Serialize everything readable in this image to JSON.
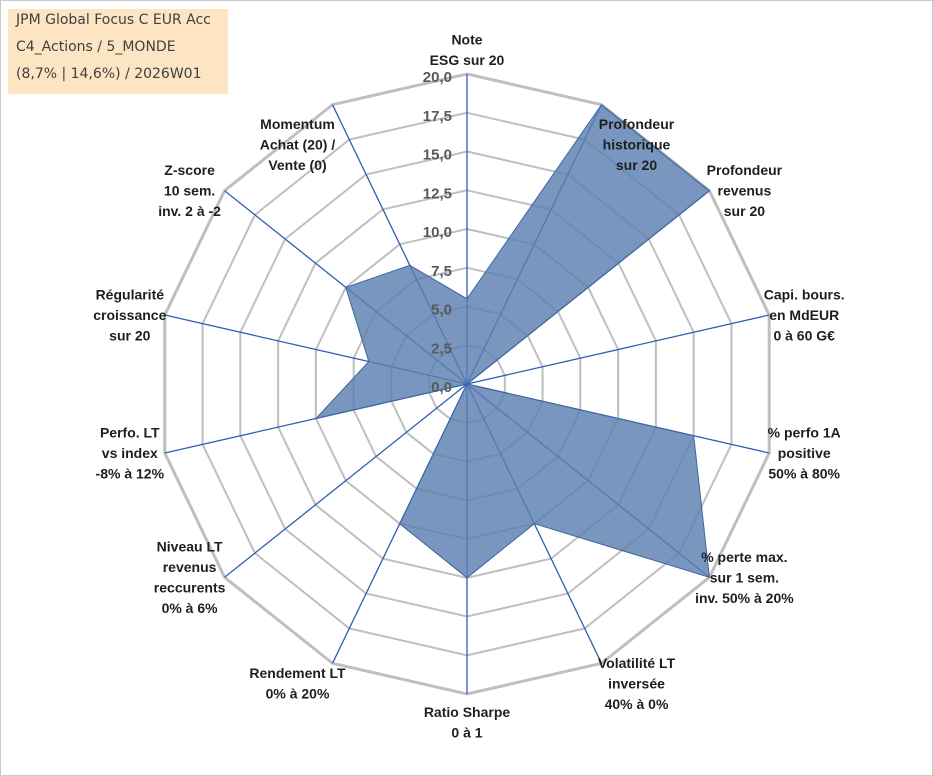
{
  "title_lines": [
    "JPM Global Focus C EUR Acc",
    "C4_Actions / 5_MONDE",
    "(8,7% | 14,6%) / 2026W01"
  ],
  "colors": {
    "fill": "#5b7fb1",
    "axis_spoke": "#2f5fb0",
    "grid": "#bfbfbf",
    "title_bg": "#fde5c4"
  },
  "chart_data": {
    "type": "radar",
    "rlim": [
      0,
      20
    ],
    "r_ticks": [
      "0,0",
      "2,5",
      "5,0",
      "7,5",
      "10,0",
      "12,5",
      "15,0",
      "17,5",
      "20,0"
    ],
    "grid": true,
    "legend": "none",
    "axes": [
      {
        "lines": [
          "Note",
          "ESG sur 20"
        ],
        "value": 5.5
      },
      {
        "lines": [
          "Profondeur",
          "historique",
          "sur 20"
        ],
        "value": 20
      },
      {
        "lines": [
          "Profondeur",
          "revenus",
          "sur 20"
        ],
        "value": 20
      },
      {
        "lines": [
          "Capi. bours.",
          "en MdEUR",
          "0 à 60 G€"
        ],
        "value": 0
      },
      {
        "lines": [
          "% perfo 1A",
          "positive",
          "50% à 80%"
        ],
        "value": 15
      },
      {
        "lines": [
          "% perte max.",
          "sur 1 sem.",
          "inv. 50% à 20%"
        ],
        "value": 20
      },
      {
        "lines": [
          "Volatilité LT",
          "inversée",
          "40% à 0%"
        ],
        "value": 10
      },
      {
        "lines": [
          "Ratio Sharpe",
          "0 à 1"
        ],
        "value": 12.5
      },
      {
        "lines": [
          "Rendement LT",
          "0% à 20%"
        ],
        "value": 10
      },
      {
        "lines": [
          "Niveau LT",
          "revenus",
          "reccurents",
          "0% à 6%"
        ],
        "value": 0
      },
      {
        "lines": [
          "Perfo. LT",
          "vs index",
          "-8% à 12%"
        ],
        "value": 10
      },
      {
        "lines": [
          "Régularité",
          "croissance",
          "sur 20"
        ],
        "value": 6.5
      },
      {
        "lines": [
          "Z-score",
          "10 sem.",
          "inv. 2 à -2"
        ],
        "value": 10
      },
      {
        "lines": [
          "Momentum",
          "Achat (20) /",
          "Vente (0)"
        ],
        "value": 8.5
      }
    ]
  }
}
